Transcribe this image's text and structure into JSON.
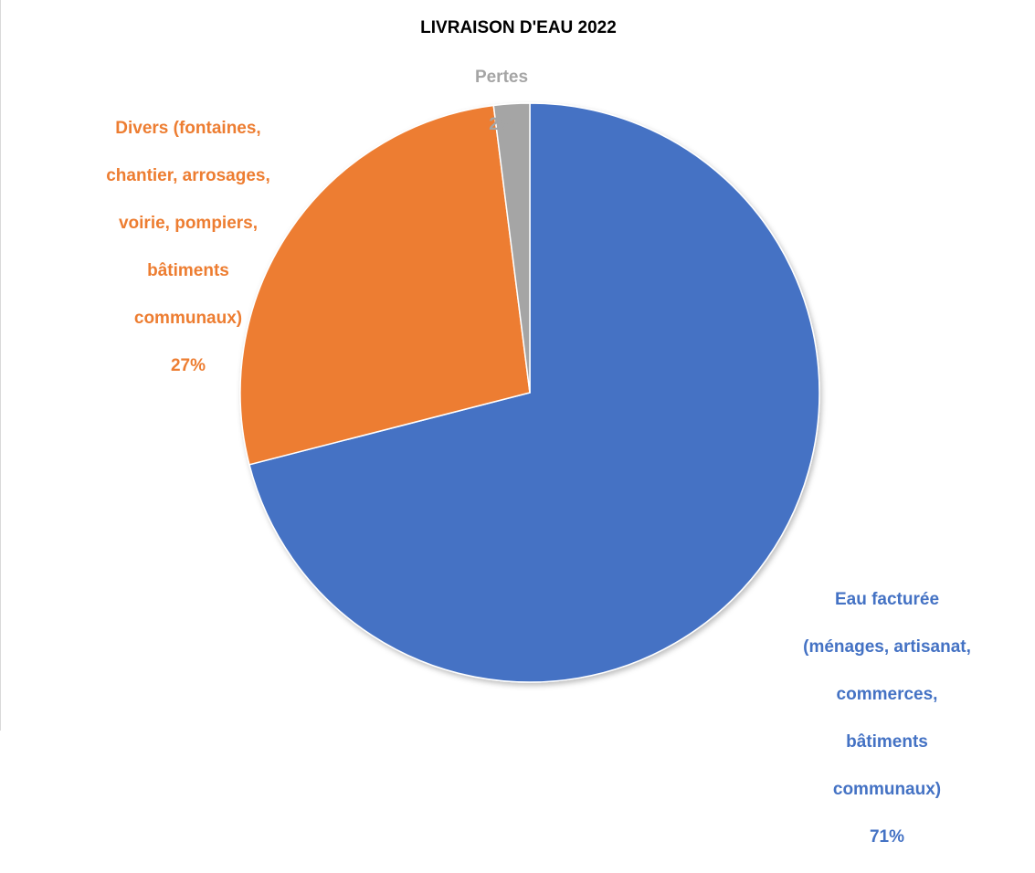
{
  "chart_data": {
    "type": "pie",
    "title": "LIVRAISON D'EAU 2022",
    "start_angle_deg": 0,
    "direction": "clockwise",
    "legend": "none",
    "slices": [
      {
        "label_lines": [
          "Eau facturée",
          "(ménages, artisanat,",
          "commerces,",
          "bâtiments",
          "communaux)"
        ],
        "value": 71,
        "percent_label": "71%",
        "color": "#4472C4"
      },
      {
        "label_lines": [
          "Divers (fontaines,",
          "chantier, arrosages,",
          "voirie, pompiers,",
          "bâtiments",
          "communaux)"
        ],
        "value": 27,
        "percent_label": "27%",
        "color": "#ED7D31"
      },
      {
        "label_lines": [
          "Pertes"
        ],
        "value": 2,
        "percent_label": "2%",
        "color": "#A5A5A5"
      }
    ]
  }
}
